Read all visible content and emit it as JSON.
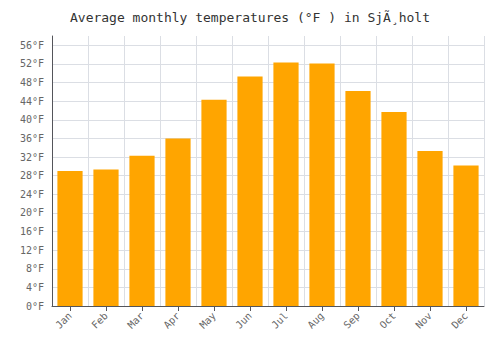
{
  "chart_data": {
    "type": "bar",
    "title": "Average monthly temperatures (°F ) in SjÃ¸holt",
    "categories": [
      "Jan",
      "Feb",
      "Mar",
      "Apr",
      "May",
      "Jun",
      "Jul",
      "Aug",
      "Sep",
      "Oct",
      "Nov",
      "Dec"
    ],
    "values": [
      29.0,
      29.3,
      32.3,
      36.0,
      44.3,
      49.3,
      52.3,
      52.1,
      46.2,
      41.7,
      33.3,
      30.2
    ],
    "color": "#FFA500",
    "ylim": [
      0,
      58
    ],
    "yticks": [
      {
        "value": 0,
        "label": "0°F"
      },
      {
        "value": 4,
        "label": "4°F"
      },
      {
        "value": 8,
        "label": "8°F"
      },
      {
        "value": 12,
        "label": "12°F"
      },
      {
        "value": 16,
        "label": "16°F"
      },
      {
        "value": 20,
        "label": "20°F"
      },
      {
        "value": 24,
        "label": "24°F"
      },
      {
        "value": 28,
        "label": "28°F"
      },
      {
        "value": 32,
        "label": "32°F"
      },
      {
        "value": 36,
        "label": "36°F"
      },
      {
        "value": 40,
        "label": "40°F"
      },
      {
        "value": 44,
        "label": "44°F"
      },
      {
        "value": 48,
        "label": "48°F"
      },
      {
        "value": 52,
        "label": "52°F"
      },
      {
        "value": 56,
        "label": "56°F"
      }
    ],
    "grid": true
  }
}
